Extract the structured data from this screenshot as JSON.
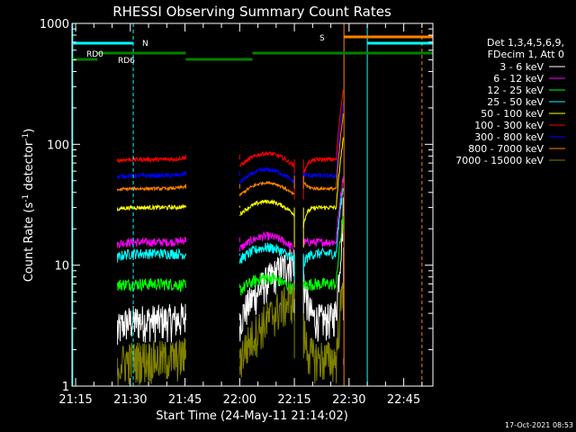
{
  "chart_data": {
    "type": "line",
    "title": "RHESSI Observing Summary Count Rates",
    "xlabel": "Start Time (24-May-11 21:14:02)",
    "ylabel_main": "Count Rate (s",
    "ylabel_sup1": "-1",
    "ylabel_mid": " detector",
    "ylabel_sup2": "-1",
    "ylabel_end": ")",
    "y_scale": "log",
    "ylim": [
      1,
      1000
    ],
    "xlim_min": [
      1274,
      1373
    ],
    "x_ticks": [
      {
        "min": 1275,
        "label": "21:15"
      },
      {
        "min": 1290,
        "label": "21:30"
      },
      {
        "min": 1305,
        "label": "21:45"
      },
      {
        "min": 1320,
        "label": "22:00"
      },
      {
        "min": 1335,
        "label": "22:15"
      },
      {
        "min": 1350,
        "label": "22:30"
      },
      {
        "min": 1365,
        "label": "22:45"
      }
    ],
    "y_ticks": [
      {
        "value": 1,
        "label": "1"
      },
      {
        "value": 10,
        "label": "10"
      },
      {
        "value": 100,
        "label": "100"
      },
      {
        "value": 1000,
        "label": "1000"
      }
    ],
    "legend_header": [
      "Det 1,3,4,5,6,9,",
      "FDecim 1, Att 0"
    ],
    "series": [
      {
        "name": "3 - 6 keV",
        "color": "#ffffff",
        "day": 3.5,
        "night": [
          2.2,
          4.0,
          12.0,
          14.0
        ],
        "noise": 0.35
      },
      {
        "name": "6 - 12 keV",
        "color": "#ff00ff",
        "day": 15.5,
        "night": [
          14.5,
          17.0,
          15.5,
          18.0
        ],
        "noise": 0.08
      },
      {
        "name": "12 - 25 keV",
        "color": "#00ff00",
        "day": 7.0,
        "night": [
          6.8,
          6.5,
          6.5,
          7.2
        ],
        "noise": 0.12
      },
      {
        "name": "25 - 50 keV",
        "color": "#00ffff",
        "day": 12.5,
        "night": [
          10.5,
          12.0,
          7.5,
          12.5
        ],
        "noise": 0.1
      },
      {
        "name": "50 - 100 keV",
        "color": "#ffff00",
        "day": 30.0,
        "night": [
          28.0,
          31.0,
          14.0,
          30.5
        ],
        "noise": 0.04
      },
      {
        "name": "100 - 300 keV",
        "color": "#ff0000",
        "day": 75.0,
        "night": [
          72.0,
          82.0,
          35.0,
          75.0
        ],
        "noise": 0.04
      },
      {
        "name": "300 - 800 keV",
        "color": "#0000ff",
        "day": 55.0,
        "night": [
          52.0,
          60.0,
          58.0,
          52.0
        ],
        "noise": 0.04
      },
      {
        "name": "800 - 7000 keV",
        "color": "#ff8000",
        "day": 43.0,
        "night": [
          41.0,
          47.0,
          55.0,
          42.0
        ],
        "noise": 0.03
      },
      {
        "name": "7000 - 15000 keV",
        "color": "#808000",
        "day": 1.7,
        "night": [
          1.2,
          2.0,
          4.0,
          1.5
        ],
        "noise": 0.4
      }
    ],
    "segments": [
      {
        "start": 1286.5,
        "end": 1305.2
      },
      {
        "start": 1320.0,
        "end": 1335.0
      },
      {
        "start": 1337.5,
        "end": 1348.5
      }
    ],
    "night_bounds": [
      [
        1274,
        1286.5
      ],
      [
        1305.2,
        1320.0
      ],
      [
        1335.0,
        1337.5
      ],
      [
        1348.5,
        1373
      ]
    ],
    "flare": {
      "start": 1346.5,
      "peak": 1348.3,
      "end": 1348.6
    },
    "state_labels": {
      "rd0": "RD0",
      "rd6": "RD6",
      "n": "N",
      "s": "S"
    },
    "state_colors": {
      "rd": "#008000",
      "n": "#00ffff",
      "s": "#ff8000"
    },
    "timestamp": "17-Oct-2021 08:53"
  }
}
